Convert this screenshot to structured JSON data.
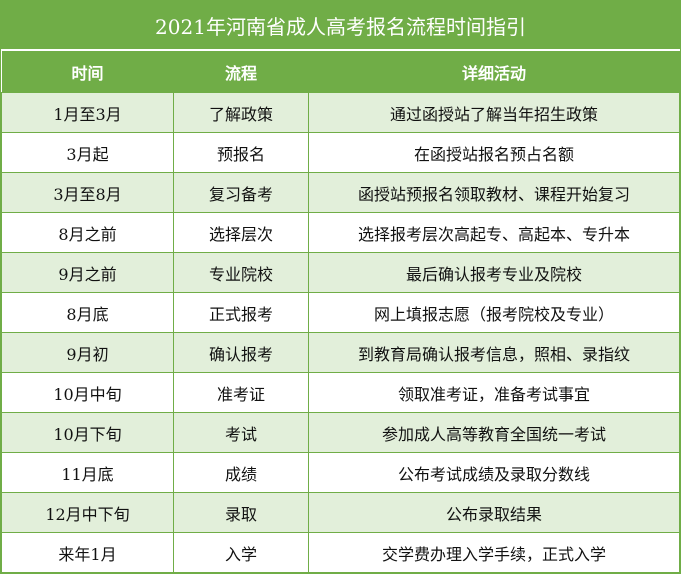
{
  "title": "2021年河南省成人高考报名流程时间指引",
  "colors": {
    "header": "#70ad47",
    "alt_row": "#e2efda"
  },
  "columns": [
    "时间",
    "流程",
    "详细活动"
  ],
  "rows": [
    [
      "1月至3月",
      "了解政策",
      "通过函授站了解当年招生政策"
    ],
    [
      "3月起",
      "预报名",
      "在函授站报名预占名额"
    ],
    [
      "3月至8月",
      "复习备考",
      "函授站预报名领取教材、课程开始复习"
    ],
    [
      "8月之前",
      "选择层次",
      "选择报考层次高起专、高起本、专升本"
    ],
    [
      "9月之前",
      "专业院校",
      "最后确认报考专业及院校"
    ],
    [
      "8月底",
      "正式报考",
      "网上填报志愿（报考院校及专业）"
    ],
    [
      "9月初",
      "确认报考",
      "到教育局确认报考信息，照相、录指纹"
    ],
    [
      "10月中旬",
      "准考证",
      "领取准考证，准备考试事宜"
    ],
    [
      "10月下旬",
      "考试",
      "参加成人高等教育全国统一考试"
    ],
    [
      "11月底",
      "成绩",
      "公布考试成绩及录取分数线"
    ],
    [
      "12月中下旬",
      "录取",
      "公布录取结果"
    ],
    [
      "来年1月",
      "入学",
      "交学费办理入学手续，正式入学"
    ]
  ]
}
